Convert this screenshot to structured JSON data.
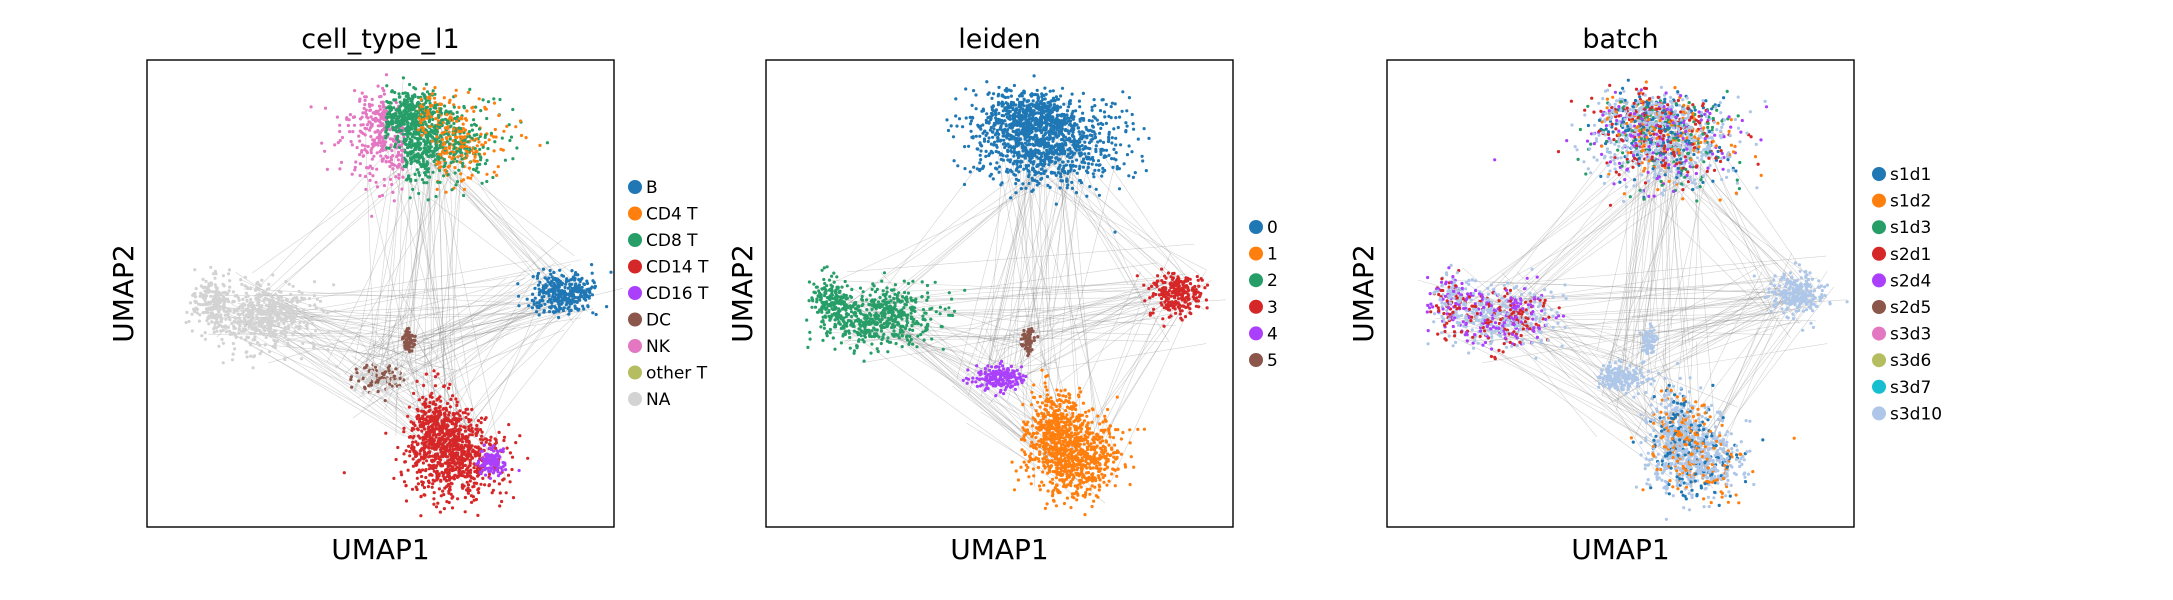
{
  "chart_data": [
    {
      "type": "scatter",
      "title": "cell_type_l1",
      "xlabel": "UMAP1",
      "ylabel": "UMAP2",
      "grid": false,
      "legend_placement": "right",
      "categories": [
        "B",
        "CD4 T",
        "CD8 T",
        "CD14 T",
        "CD16 T",
        "DC",
        "NK",
        "other T",
        "NA"
      ],
      "colors": [
        "#1f77b4",
        "#ff7f0e",
        "#279e68",
        "#d62728",
        "#aa40fc",
        "#8c564b",
        "#e377c2",
        "#b5bd61",
        "#d3d3d3"
      ]
    },
    {
      "type": "scatter",
      "title": "leiden",
      "xlabel": "UMAP1",
      "ylabel": "UMAP2",
      "grid": false,
      "legend_placement": "right",
      "categories": [
        "0",
        "1",
        "2",
        "3",
        "4",
        "5"
      ],
      "colors": [
        "#1f77b4",
        "#ff7f0e",
        "#279e68",
        "#d62728",
        "#aa40fc",
        "#8c564b"
      ]
    },
    {
      "type": "scatter",
      "title": "batch",
      "xlabel": "UMAP1",
      "ylabel": "UMAP2",
      "grid": false,
      "legend_placement": "right",
      "categories": [
        "s1d1",
        "s1d2",
        "s1d3",
        "s2d1",
        "s2d4",
        "s2d5",
        "s3d3",
        "s3d6",
        "s3d7",
        "s3d10"
      ],
      "colors": [
        "#1f77b4",
        "#ff7f0e",
        "#279e68",
        "#d62728",
        "#aa40fc",
        "#8c564b",
        "#e377c2",
        "#b5bd61",
        "#17becf",
        "#aec7e8"
      ]
    }
  ]
}
